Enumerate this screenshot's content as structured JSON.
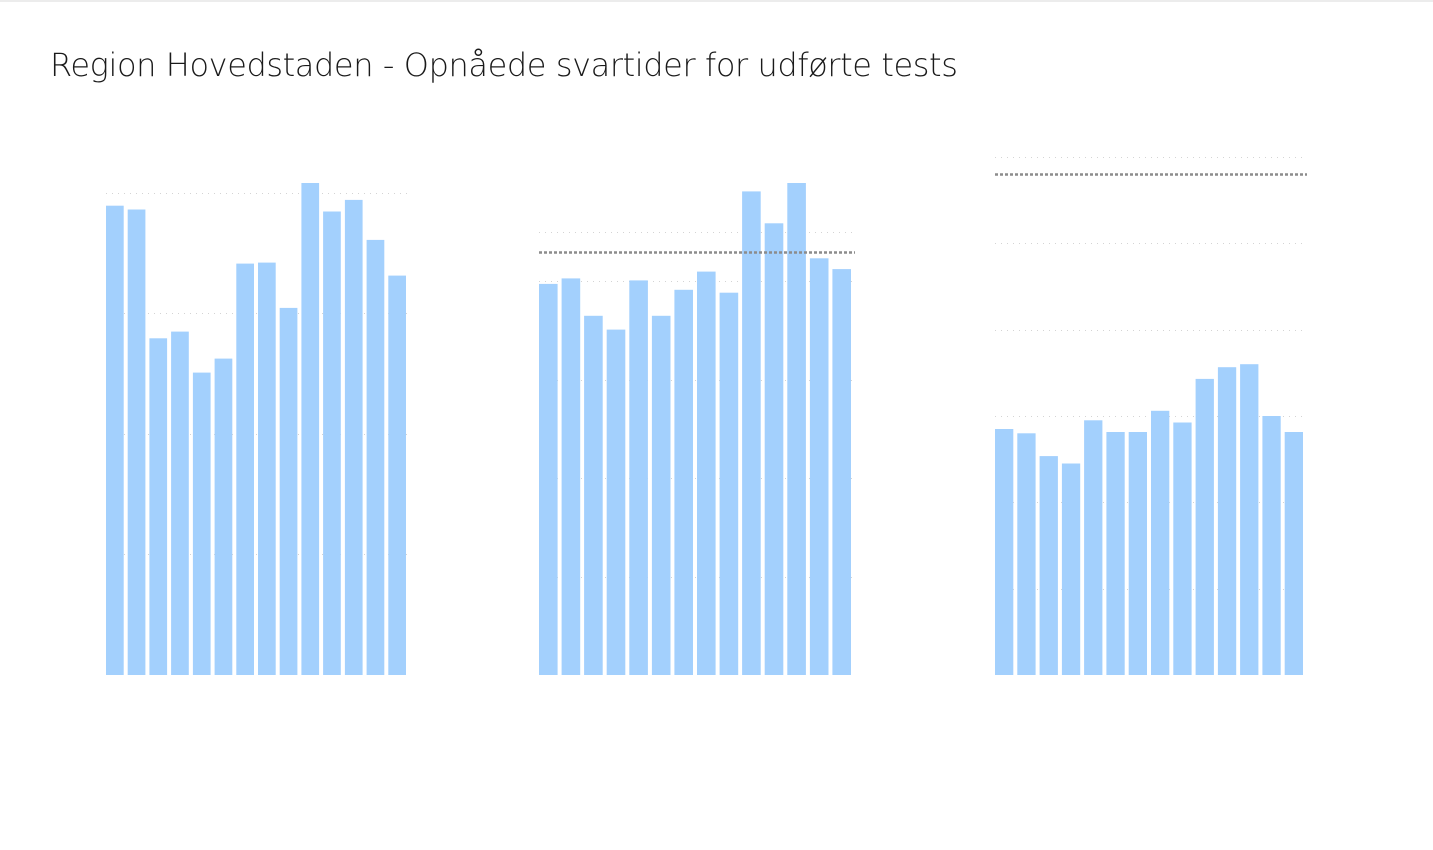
{
  "page": {
    "title": "Region Hovedstaden - Opnåede svartider for udførte tests"
  },
  "colors": {
    "bar": "#a3d0fd",
    "gridline": "#d4d4d4",
    "reference_line": "#8c8c8c"
  },
  "chart_data": [
    {
      "type": "bar",
      "values": [
        0.973,
        0.965,
        0.698,
        0.712,
        0.627,
        0.656,
        0.853,
        0.855,
        0.761,
        1.02,
        0.961,
        0.985,
        0.902,
        0.828
      ],
      "ylim": [
        0,
        1.02
      ],
      "gridlines": [
        0.25,
        0.5,
        0.75,
        1.0
      ],
      "reference_line": null,
      "grid": true
    },
    {
      "type": "bar",
      "values": [
        0.795,
        0.806,
        0.73,
        0.702,
        0.802,
        0.73,
        0.783,
        0.82,
        0.777,
        0.983,
        0.918,
        1.0,
        0.847,
        0.825
      ],
      "ylim": [
        0,
        1.0
      ],
      "gridlines": [
        0.2,
        0.4,
        0.6,
        0.8,
        0.9
      ],
      "reference_line": 0.86,
      "grid": true
    },
    {
      "type": "bar",
      "values": [
        0.57,
        0.56,
        0.507,
        0.49,
        0.59,
        0.563,
        0.563,
        0.612,
        0.585,
        0.686,
        0.713,
        0.72,
        0.6,
        0.563
      ],
      "ylim": [
        0,
        1.2
      ],
      "gridlines": [
        0.2,
        0.4,
        0.6,
        0.8,
        1.0,
        1.2
      ],
      "reference_line": 1.16,
      "grid": true
    }
  ]
}
